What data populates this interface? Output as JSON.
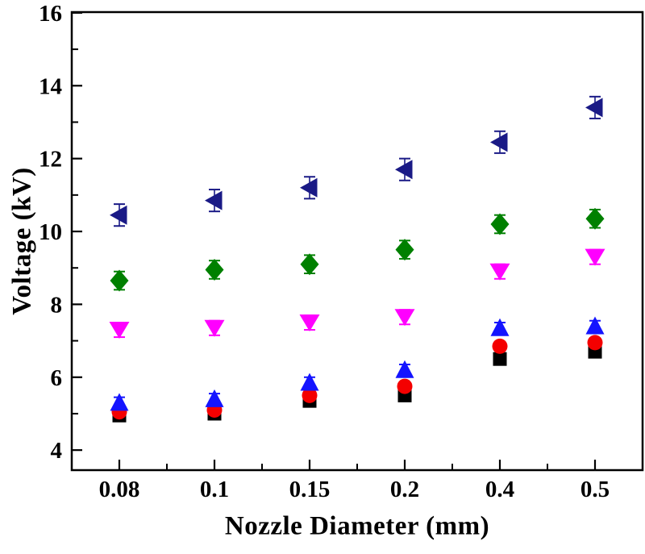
{
  "figure": {
    "background": "#ffffff",
    "axis_color": "#000000"
  },
  "chart_data": {
    "type": "scatter",
    "title": "",
    "xlabel": "Nozzle Diameter (mm)",
    "ylabel": "Voltage (kV)",
    "x_categories": [
      "0.08",
      "0.1",
      "0.15",
      "0.2",
      "0.4",
      "0.5"
    ],
    "y_ticks": [
      4,
      6,
      8,
      10,
      12,
      14,
      16
    ],
    "y_minor_ticks": [
      5,
      7,
      9,
      11,
      13,
      15
    ],
    "ylim": [
      3.45,
      16.02
    ],
    "grid": false,
    "legend": "none",
    "error_bars": true,
    "series": [
      {
        "name": "black-square",
        "marker": "square",
        "color": "#000000",
        "values": [
          4.95,
          5.0,
          5.35,
          5.5,
          6.5,
          6.7
        ],
        "error_kV": 0.1
      },
      {
        "name": "red-circle",
        "marker": "circle",
        "color": "#f40000",
        "values": [
          5.05,
          5.1,
          5.5,
          5.75,
          6.85,
          6.95
        ],
        "error_kV": 0.12
      },
      {
        "name": "blue-up-triangle",
        "marker": "triangle-up",
        "color": "#1414ff",
        "values": [
          5.3,
          5.4,
          5.85,
          6.2,
          7.35,
          7.4
        ],
        "error_kV": 0.15
      },
      {
        "name": "magenta-down-triangle",
        "marker": "triangle-down",
        "color": "#ff00ff",
        "values": [
          7.3,
          7.35,
          7.5,
          7.65,
          8.9,
          9.3
        ],
        "error_kV": 0.2
      },
      {
        "name": "green-diamond",
        "marker": "diamond",
        "color": "#008000",
        "values": [
          8.65,
          8.95,
          9.1,
          9.5,
          10.2,
          10.35
        ],
        "error_kV": 0.25
      },
      {
        "name": "navy-left-triangle",
        "marker": "triangle-left",
        "color": "#1a1a86",
        "values": [
          10.45,
          10.85,
          11.2,
          11.7,
          12.45,
          13.4
        ],
        "error_kV": 0.3
      }
    ]
  }
}
